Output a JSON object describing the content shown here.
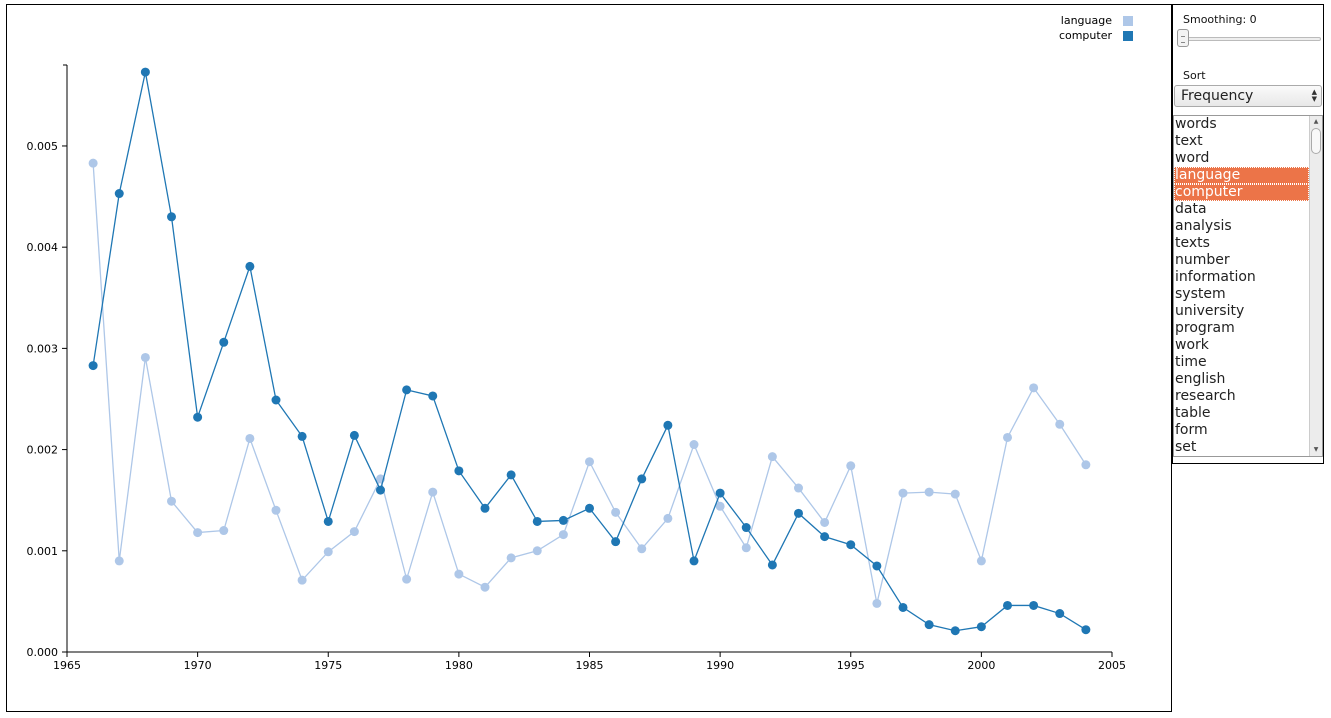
{
  "chart_data": {
    "type": "line",
    "x": [
      1966,
      1967,
      1968,
      1969,
      1970,
      1971,
      1972,
      1973,
      1974,
      1975,
      1976,
      1977,
      1978,
      1979,
      1980,
      1981,
      1982,
      1983,
      1984,
      1985,
      1986,
      1987,
      1988,
      1989,
      1990,
      1991,
      1992,
      1993,
      1994,
      1995,
      1996,
      1997,
      1998,
      1999,
      2000,
      2001,
      2002,
      2003,
      2004
    ],
    "series": [
      {
        "name": "language",
        "color": "#aec7e8",
        "values": [
          0.00483,
          0.0009,
          0.00291,
          0.00149,
          0.00118,
          0.0012,
          0.00211,
          0.0014,
          0.00071,
          0.00099,
          0.00119,
          0.00171,
          0.00072,
          0.00158,
          0.00077,
          0.00064,
          0.00093,
          0.001,
          0.00116,
          0.00188,
          0.00138,
          0.00102,
          0.00132,
          0.00205,
          0.00144,
          0.00103,
          0.00193,
          0.00162,
          0.00128,
          0.00184,
          0.00048,
          0.00157,
          0.00158,
          0.00156,
          0.0009,
          0.00212,
          0.00261,
          0.00225,
          0.00185
        ]
      },
      {
        "name": "computer",
        "color": "#1f77b4",
        "values": [
          0.00283,
          0.00453,
          0.00573,
          0.0043,
          0.00232,
          0.00306,
          0.00381,
          0.00249,
          0.00213,
          0.00129,
          0.00214,
          0.0016,
          0.00259,
          0.00253,
          0.00179,
          0.00142,
          0.00175,
          0.00129,
          0.0013,
          0.00142,
          0.00109,
          0.00171,
          0.00224,
          0.0009,
          0.00157,
          0.00123,
          0.00086,
          0.00137,
          0.00114,
          0.00106,
          0.00085,
          0.00044,
          0.00027,
          0.00021,
          0.00025,
          0.00046,
          0.00046,
          0.00038,
          0.00022
        ]
      }
    ],
    "xlim": [
      1965,
      2005
    ],
    "ylim": [
      0,
      0.0058
    ],
    "x_ticks": [
      "1965",
      "1970",
      "1975",
      "1980",
      "1985",
      "1990",
      "1995",
      "2000",
      "2005"
    ],
    "y_ticks": [
      "0.000",
      "0.001",
      "0.002",
      "0.003",
      "0.004",
      "0.005"
    ],
    "grid": false,
    "legend_position": "top-right"
  },
  "controls": {
    "smoothing_label": "Smoothing: 0",
    "smoothing_value": 0,
    "sort_label": "Sort",
    "sort_selected": "Frequency"
  },
  "word_list": [
    {
      "label": "words",
      "selected": false
    },
    {
      "label": "text",
      "selected": false
    },
    {
      "label": "word",
      "selected": false
    },
    {
      "label": "language",
      "selected": true
    },
    {
      "label": "computer",
      "selected": true
    },
    {
      "label": "data",
      "selected": false
    },
    {
      "label": "analysis",
      "selected": false
    },
    {
      "label": "texts",
      "selected": false
    },
    {
      "label": "number",
      "selected": false
    },
    {
      "label": "information",
      "selected": false
    },
    {
      "label": "system",
      "selected": false
    },
    {
      "label": "university",
      "selected": false
    },
    {
      "label": "program",
      "selected": false
    },
    {
      "label": "work",
      "selected": false
    },
    {
      "label": "time",
      "selected": false
    },
    {
      "label": "english",
      "selected": false
    },
    {
      "label": "research",
      "selected": false
    },
    {
      "label": "table",
      "selected": false
    },
    {
      "label": "form",
      "selected": false
    },
    {
      "label": "set",
      "selected": false
    }
  ]
}
